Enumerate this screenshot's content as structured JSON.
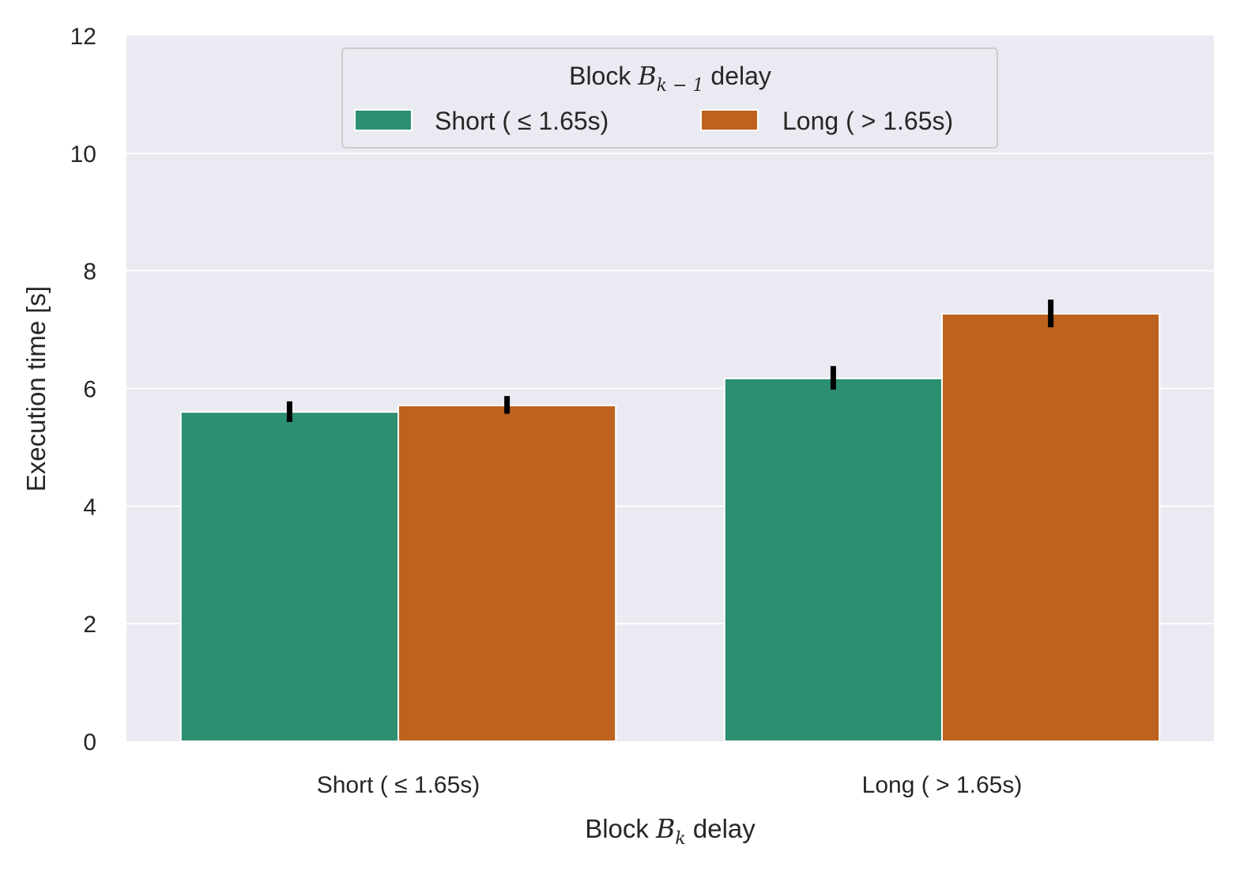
{
  "chart_data": {
    "type": "bar",
    "categories": [
      "Short ( ≤ 1.65s)",
      "Long ( > 1.65s)"
    ],
    "series": [
      {
        "name": "Short ( ≤ 1.65s)",
        "values": [
          5.6,
          6.17
        ],
        "error_low": [
          5.43,
          5.98
        ],
        "error_high": [
          5.78,
          6.38
        ],
        "color": "#2d8f72"
      },
      {
        "name": "Long ( > 1.65s)",
        "values": [
          5.71,
          7.27
        ],
        "error_low": [
          5.57,
          7.04
        ],
        "error_high": [
          5.87,
          7.51
        ],
        "color": "#bd621f"
      }
    ],
    "xlabel": {
      "pre": "Block ",
      "sym": "B",
      "sub": "k",
      "post": " delay"
    },
    "ylabel": "Execution time [s]",
    "legend_title": {
      "pre": "Block ",
      "sym": "B",
      "sub": "k − 1",
      "post": " delay"
    },
    "yticks": [
      0,
      2,
      4,
      6,
      8,
      10,
      12
    ],
    "ylim": [
      0,
      12
    ],
    "grid": true,
    "legend_position": "top-center",
    "plot_background": "#eaeaf2",
    "error_bar_color": "#000000"
  }
}
